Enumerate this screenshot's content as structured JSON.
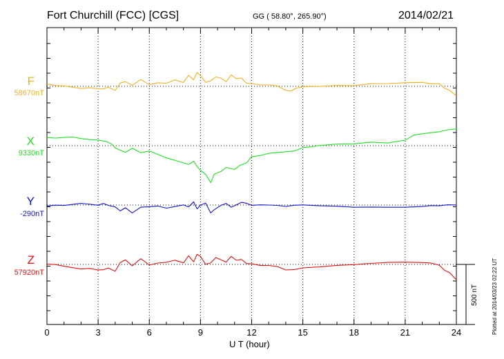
{
  "header": {
    "station": "Fort Churchill (FCC)  [CGS]",
    "coords": "GG ( 58.80°, 265.90°)",
    "date": "2014/02/21"
  },
  "credit": "Plotted at 2014/03/23 02:22 UT",
  "scale_bar": {
    "label": "500 nT",
    "value_nT": 500
  },
  "chart_data": {
    "type": "line",
    "xlabel": "U T (hour)",
    "xlim": [
      0,
      24
    ],
    "xticks": [
      "0",
      "3",
      "6",
      "9",
      "12",
      "15",
      "18",
      "21",
      "24"
    ],
    "grid": true,
    "legend": "left labels",
    "series": [
      {
        "name": "F",
        "baseline_label": "58670nT",
        "baseline": 58670,
        "color": "#f0b020",
        "x": [
          0,
          0.5,
          1,
          1.5,
          2,
          2.5,
          3,
          3.3,
          3.6,
          4,
          4.3,
          4.6,
          5,
          5.5,
          6,
          6.5,
          7,
          7.5,
          8,
          8.3,
          8.6,
          8.8,
          9,
          9.3,
          9.6,
          9.9,
          10.2,
          10.5,
          10.8,
          11.1,
          11.4,
          11.7,
          12,
          12.5,
          13,
          13.5,
          14,
          14.3,
          14.6,
          15,
          15.5,
          16,
          17,
          18,
          19,
          20,
          21,
          22,
          22.5,
          23,
          23.3,
          23.6,
          24
        ],
        "values": [
          58690,
          58680,
          58680,
          58670,
          58660,
          58665,
          58655,
          58650,
          58660,
          58630,
          58690,
          58700,
          58670,
          58720,
          58680,
          58700,
          58700,
          58730,
          58710,
          58770,
          58730,
          58790,
          58760,
          58700,
          58710,
          58740,
          58730,
          58700,
          58760,
          58730,
          58740,
          58700,
          58700,
          58690,
          58690,
          58680,
          58640,
          58630,
          58650,
          58660,
          58660,
          58660,
          58670,
          58670,
          58690,
          58695,
          58705,
          58710,
          58700,
          58700,
          58660,
          58640,
          58590
        ]
      },
      {
        "name": "X",
        "baseline_label": "9330nT",
        "baseline": 9330,
        "color": "#20e020",
        "x": [
          0,
          0.5,
          1,
          1.5,
          2,
          2.5,
          3,
          3.5,
          3.8,
          4,
          4.3,
          4.6,
          5,
          5.5,
          6,
          6.5,
          7,
          7.5,
          8,
          8.3,
          8.6,
          8.8,
          9,
          9.3,
          9.6,
          9.8,
          10.2,
          10.5,
          11,
          11.3,
          11.7,
          12,
          12.5,
          13,
          13.5,
          14,
          14.5,
          15,
          15.5,
          16,
          17,
          18,
          19,
          20,
          21,
          21.5,
          22,
          22.5,
          23,
          23.5,
          24
        ],
        "values": [
          9390,
          9385,
          9390,
          9395,
          9385,
          9380,
          9380,
          9370,
          9350,
          9320,
          9300,
          9280,
          9310,
          9270,
          9280,
          9250,
          9220,
          9200,
          9180,
          9170,
          9200,
          9160,
          9130,
          9100,
          9030,
          9100,
          9120,
          9150,
          9130,
          9160,
          9180,
          9230,
          9240,
          9260,
          9270,
          9280,
          9290,
          9320,
          9330,
          9340,
          9350,
          9350,
          9360,
          9350,
          9370,
          9410,
          9420,
          9430,
          9440,
          9460,
          9470
        ]
      },
      {
        "name": "Y",
        "baseline_label": "-290nT",
        "baseline": -290,
        "color": "#1010d0",
        "x": [
          0,
          0.5,
          1,
          1.5,
          2,
          2.5,
          3,
          3.3,
          3.6,
          4,
          4.3,
          4.6,
          5,
          5.5,
          6,
          6.5,
          7,
          7.5,
          8,
          8.3,
          8.6,
          8.8,
          9,
          9.3,
          9.6,
          9.8,
          10.2,
          10.5,
          10.8,
          11.1,
          11.4,
          11.7,
          12,
          12.5,
          13,
          13.5,
          14,
          14.5,
          15,
          16,
          17,
          18,
          19,
          20,
          21,
          22,
          22.5,
          23,
          23.5,
          24
        ],
        "values": [
          -290,
          -285,
          -290,
          -285,
          -280,
          -290,
          -300,
          -285,
          -300,
          -310,
          -340,
          -310,
          -350,
          -300,
          -295,
          -290,
          -310,
          -300,
          -290,
          -310,
          -270,
          -330,
          -300,
          -280,
          -360,
          -330,
          -290,
          -270,
          -300,
          -280,
          -260,
          -270,
          -290,
          -290,
          -295,
          -300,
          -310,
          -300,
          -295,
          -300,
          -300,
          -305,
          -300,
          -300,
          -300,
          -295,
          -290,
          -295,
          -290,
          -295
        ]
      },
      {
        "name": "Z",
        "baseline_label": "57920nT",
        "baseline": 57920,
        "color": "#e01010",
        "x": [
          0,
          0.5,
          1,
          1.5,
          2,
          2.5,
          3,
          3.3,
          3.6,
          4,
          4.3,
          4.6,
          5,
          5.5,
          6,
          6.5,
          7,
          7.5,
          8,
          8.3,
          8.6,
          8.8,
          9,
          9.3,
          9.6,
          9.9,
          10.2,
          10.5,
          10.8,
          11.1,
          11.4,
          11.7,
          12,
          12.5,
          13,
          13.5,
          14,
          14.5,
          15,
          16,
          17,
          18,
          19,
          20,
          21,
          22,
          22.5,
          23,
          23.3,
          23.6,
          24
        ],
        "values": [
          57920,
          57920,
          57910,
          57900,
          57890,
          57895,
          57880,
          57880,
          57890,
          57860,
          57930,
          57950,
          57900,
          57960,
          57910,
          57930,
          57940,
          57960,
          57940,
          58000,
          57950,
          58010,
          57990,
          57920,
          57930,
          57970,
          57950,
          57930,
          57980,
          57950,
          57960,
          57930,
          57930,
          57920,
          57920,
          57910,
          57880,
          57880,
          57890,
          57895,
          57905,
          57910,
          57920,
          57930,
          57935,
          57935,
          57935,
          57920,
          57880,
          57860,
          57800
        ]
      }
    ]
  }
}
